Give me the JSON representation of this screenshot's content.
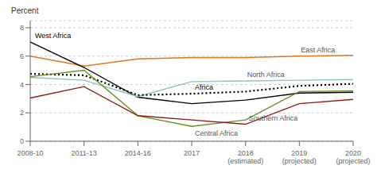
{
  "chart_data": {
    "type": "line",
    "ylabel": "Percent",
    "categories": [
      "2008-10",
      "2011-13",
      "2014-16",
      "2017",
      "2018\n(estimated)",
      "2019\n(projected)",
      "2020\n(projected)"
    ],
    "series": [
      {
        "name": "East Africa",
        "color": "#E07820",
        "line_style": "solid",
        "values": [
          6.0,
          5.3,
          5.8,
          5.9,
          5.9,
          6.0,
          6.05
        ]
      },
      {
        "name": "West Africa",
        "color": "#000000",
        "line_style": "solid",
        "values": [
          7.0,
          5.2,
          3.1,
          2.65,
          2.9,
          3.4,
          3.45
        ]
      },
      {
        "name": "North Africa",
        "color": "#90C0C0",
        "line_style": "solid",
        "values": [
          4.5,
          4.3,
          3.15,
          4.2,
          4.25,
          4.3,
          4.35
        ]
      },
      {
        "name": "Africa",
        "color": "#000000",
        "line_style": "dotted",
        "values": [
          4.75,
          4.65,
          3.25,
          3.35,
          3.5,
          3.9,
          4.05
        ]
      },
      {
        "name": "Central Africa",
        "color": "#6B8E23",
        "line_style": "solid",
        "values": [
          4.55,
          5.0,
          1.8,
          1.05,
          1.5,
          3.5,
          3.55
        ]
      },
      {
        "name": "Southern Africa",
        "color": "#8B1A1A",
        "line_style": "solid",
        "values": [
          3.05,
          3.85,
          1.8,
          1.5,
          1.2,
          2.65,
          2.95
        ]
      }
    ],
    "ylim": [
      0,
      8.5
    ],
    "yticks": [
      0,
      2,
      4,
      6,
      8
    ],
    "grid": true
  }
}
